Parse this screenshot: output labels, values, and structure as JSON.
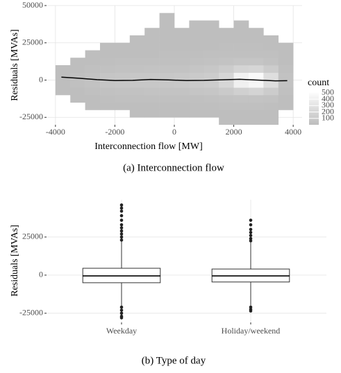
{
  "chart_data": [
    {
      "type": "heatmap",
      "x_label": "Interconnection flow [MW]",
      "y_label": "Residuals [MVAs]",
      "caption": "(a) Interconnection flow",
      "legend_title": "count",
      "xlim": [
        -4300,
        4300
      ],
      "xticks": [
        -4000,
        -2000,
        0,
        2000,
        4000
      ],
      "ylim": [
        -30000,
        50000
      ],
      "yticks": [
        -25000,
        0,
        25000,
        50000
      ],
      "grid": true,
      "x_bins": [
        -4000,
        -3500,
        -3000,
        -2500,
        -2000,
        -1500,
        -1000,
        -500,
        0,
        500,
        1000,
        1500,
        2000,
        2500,
        3000,
        3500,
        4000
      ],
      "y_bins": [
        -30000,
        -25000,
        -20000,
        -15000,
        -10000,
        -5000,
        0,
        5000,
        10000,
        15000,
        20000,
        25000,
        30000,
        35000,
        40000,
        45000
      ],
      "counts": [
        [
          null,
          null,
          null,
          null,
          null,
          null,
          null,
          null,
          null,
          null,
          null,
          5,
          5,
          5,
          5,
          null
        ],
        [
          null,
          null,
          null,
          null,
          null,
          5,
          5,
          5,
          5,
          5,
          8,
          10,
          10,
          10,
          8,
          null
        ],
        [
          null,
          null,
          5,
          5,
          8,
          10,
          10,
          10,
          10,
          12,
          15,
          20,
          20,
          20,
          15,
          5
        ],
        [
          null,
          5,
          10,
          15,
          20,
          20,
          20,
          20,
          20,
          25,
          30,
          40,
          50,
          50,
          40,
          10
        ],
        [
          5,
          10,
          20,
          30,
          40,
          40,
          45,
          45,
          50,
          60,
          70,
          100,
          150,
          180,
          120,
          20
        ],
        [
          10,
          20,
          40,
          60,
          70,
          75,
          80,
          80,
          90,
          100,
          120,
          200,
          400,
          450,
          250,
          40
        ],
        [
          10,
          20,
          40,
          60,
          70,
          75,
          80,
          80,
          90,
          100,
          120,
          200,
          420,
          480,
          260,
          40
        ],
        [
          5,
          10,
          20,
          30,
          40,
          40,
          45,
          45,
          50,
          60,
          80,
          120,
          180,
          200,
          120,
          20
        ],
        [
          null,
          5,
          10,
          15,
          20,
          20,
          20,
          25,
          25,
          30,
          40,
          50,
          60,
          60,
          40,
          10
        ],
        [
          null,
          null,
          5,
          5,
          10,
          10,
          10,
          12,
          12,
          15,
          20,
          25,
          25,
          25,
          20,
          5
        ],
        [
          null,
          null,
          null,
          5,
          5,
          5,
          5,
          8,
          8,
          10,
          10,
          12,
          12,
          12,
          10,
          5
        ],
        [
          null,
          null,
          null,
          null,
          null,
          5,
          5,
          5,
          5,
          5,
          5,
          8,
          8,
          8,
          5,
          null
        ],
        [
          null,
          null,
          null,
          null,
          null,
          null,
          5,
          5,
          5,
          5,
          5,
          5,
          5,
          5,
          null,
          null
        ],
        [
          null,
          null,
          null,
          null,
          null,
          null,
          null,
          5,
          null,
          5,
          5,
          null,
          5,
          null,
          null,
          null
        ],
        [
          null,
          null,
          null,
          null,
          null,
          null,
          null,
          5,
          null,
          null,
          null,
          null,
          null,
          null,
          null,
          null
        ]
      ],
      "colorlim": [
        0,
        520
      ],
      "color_ticks": [
        100,
        200,
        300,
        400,
        500
      ],
      "colors": {
        "low": "#bdbdbd",
        "high": "#ffffff"
      },
      "smooth": {
        "color": "#000000",
        "x": [
          -3800,
          -3200,
          -2600,
          -2000,
          -1400,
          -800,
          -200,
          400,
          1000,
          1600,
          2200,
          2800,
          3400,
          3800
        ],
        "values": [
          2000,
          1200,
          300,
          -300,
          -200,
          400,
          100,
          -300,
          -200,
          200,
          500,
          0,
          -500,
          -400
        ]
      }
    },
    {
      "type": "box",
      "y_label": "Residuals [MVAs]",
      "caption": "(b) Type of day",
      "ylim": [
        -31000,
        49500
      ],
      "yticks": [
        -25000,
        0,
        25000
      ],
      "grid": true,
      "categories": [
        "Weekday",
        "Holiday/weekend"
      ],
      "boxes": [
        {
          "whisker_low": -20000,
          "q1": -5000,
          "median": -500,
          "q3": 4500,
          "whisker_high": 22000,
          "outliers": [
            23000,
            25000,
            27000,
            29000,
            31000,
            33000,
            36000,
            39000,
            42000,
            44000,
            46000,
            -21000,
            -23000,
            -25000,
            -27000,
            -28000
          ]
        },
        {
          "whisker_low": -20000,
          "q1": -4500,
          "median": -500,
          "q3": 4000,
          "whisker_high": 21500,
          "outliers": [
            22500,
            24000,
            26000,
            28000,
            30000,
            33000,
            36000,
            -21000,
            -22500,
            -23500
          ]
        }
      ]
    }
  ]
}
